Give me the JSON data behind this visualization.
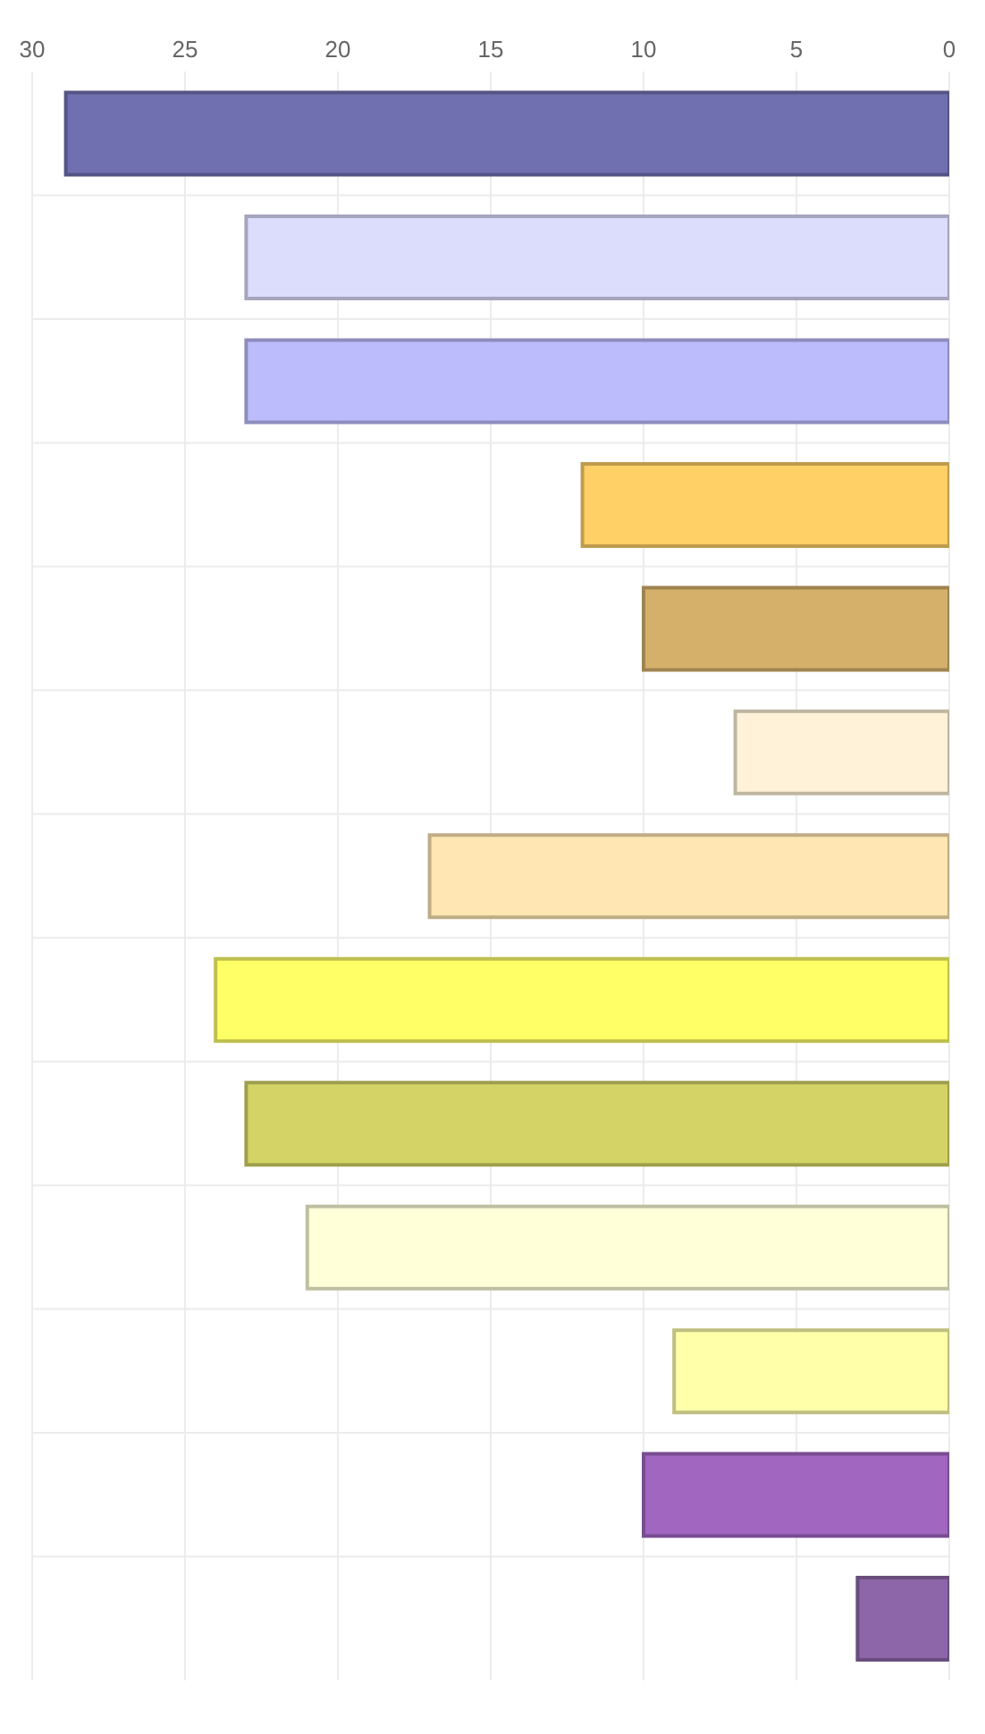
{
  "chart_data": {
    "type": "bar",
    "orientation": "horizontal",
    "categories": [
      null,
      null,
      null,
      null,
      null,
      null,
      null,
      null,
      null,
      null,
      null,
      null,
      null
    ],
    "values": [
      28.9,
      23,
      23,
      12,
      10,
      7,
      17,
      24,
      23,
      21,
      9,
      10,
      3
    ],
    "colors": [
      "#7070b0",
      "#dcdcfc",
      "#bcbcfc",
      "#ffd066",
      "#d4b06a",
      "#fff2d8",
      "#ffe6b3",
      "#ffff66",
      "#d4d466",
      "#ffffd8",
      "#ffffaa",
      "#a066c0",
      "#8c66a8"
    ],
    "xlim": [
      30,
      0
    ],
    "xticks": [
      0,
      5,
      10,
      15,
      20,
      25,
      30
    ],
    "grid": true
  }
}
